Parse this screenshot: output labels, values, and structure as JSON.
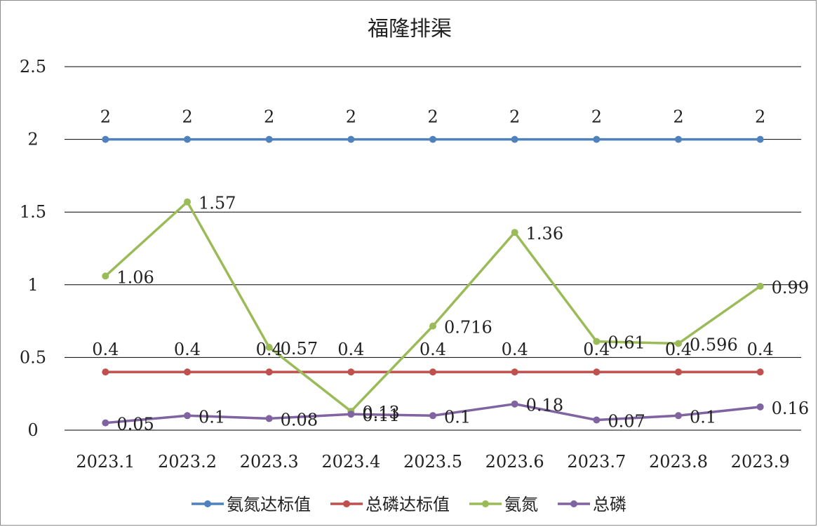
{
  "chart_data": {
    "type": "line",
    "title": "福隆排渠",
    "xlabel": "",
    "ylabel": "",
    "ylim": [
      0,
      2.5
    ],
    "y_ticks": [
      "0",
      "0.5",
      "1",
      "1.5",
      "2",
      "2.5"
    ],
    "categories": [
      "2023.1",
      "2023.2",
      "2023.3",
      "2023.4",
      "2023.5",
      "2023.6",
      "2023.7",
      "2023.8",
      "2023.9"
    ],
    "grid": true,
    "legend_position": "bottom",
    "series": [
      {
        "name": "氨氮达标值",
        "color": "#4f81bd",
        "values": [
          2,
          2,
          2,
          2,
          2,
          2,
          2,
          2,
          2
        ],
        "labels": [
          "2",
          "2",
          "2",
          "2",
          "2",
          "2",
          "2",
          "2",
          "2"
        ]
      },
      {
        "name": "总磷达标值",
        "color": "#c0504d",
        "values": [
          0.4,
          0.4,
          0.4,
          0.4,
          0.4,
          0.4,
          0.4,
          0.4,
          0.4
        ],
        "labels": [
          "0.4",
          "0.4",
          "0.4",
          "0.4",
          "0.4",
          "0.4",
          "0.4",
          "0.4",
          "0.4"
        ]
      },
      {
        "name": "氨氮",
        "color": "#9bbb59",
        "values": [
          1.06,
          1.57,
          0.57,
          0.13,
          0.716,
          1.36,
          0.61,
          0.596,
          0.99
        ],
        "labels": [
          "1.06",
          "1.57",
          "0.57",
          "0.13",
          "0.716",
          "1.36",
          "0.61",
          "0.596",
          "0.99"
        ]
      },
      {
        "name": "总磷",
        "color": "#8064a2",
        "values": [
          0.05,
          0.1,
          0.08,
          0.11,
          0.1,
          0.18,
          0.07,
          0.1,
          0.16
        ],
        "labels": [
          "0.05",
          "0.1",
          "0.08",
          "0.11",
          "0.1",
          "0.18",
          "0.07",
          "0.1",
          "0.16"
        ]
      }
    ]
  }
}
